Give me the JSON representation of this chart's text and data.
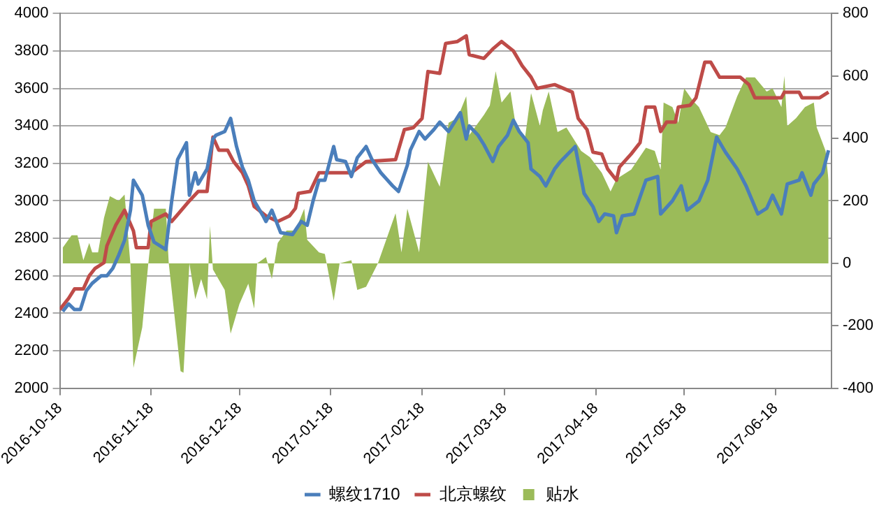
{
  "chart_data": {
    "type": "line",
    "xlim": [
      "2016-10-18",
      "2017-07-07"
    ],
    "xticks": [
      "2016-10-18",
      "2016-11-18",
      "2016-12-18",
      "2017-01-18",
      "2017-02-18",
      "2017-03-18",
      "2017-04-18",
      "2017-05-18",
      "2017-06-18"
    ],
    "ylim": [
      2000,
      4000
    ],
    "yticks": [
      2000,
      2200,
      2400,
      2600,
      2800,
      3000,
      3200,
      3400,
      3600,
      3800,
      4000
    ],
    "y2lim": [
      -400,
      800
    ],
    "y2ticks": [
      -400,
      -200,
      0,
      200,
      400,
      600,
      800
    ],
    "grid": "y",
    "legend": "bottom",
    "series": [
      {
        "name": "贴水",
        "type": "area",
        "axis": "y2",
        "color": "#9bbb59",
        "x": [
          "2016-10-19",
          "2016-10-22",
          "2016-10-24",
          "2016-10-26",
          "2016-10-28",
          "2016-10-29",
          "2016-10-31",
          "2016-11-02",
          "2016-11-04",
          "2016-11-07",
          "2016-11-09",
          "2016-11-11",
          "2016-11-12",
          "2016-11-15",
          "2016-11-17",
          "2016-11-19",
          "2016-11-23",
          "2016-11-24",
          "2016-11-28",
          "2016-11-29",
          "2016-12-01",
          "2016-12-03",
          "2016-12-05",
          "2016-12-07",
          "2016-12-08",
          "2016-12-09",
          "2016-12-13",
          "2016-12-15",
          "2016-12-18",
          "2016-12-21",
          "2016-12-23",
          "2016-12-24",
          "2016-12-27",
          "2016-12-29",
          "2016-12-31",
          "2017-01-03",
          "2017-01-06",
          "2017-01-09",
          "2017-01-10",
          "2017-01-14",
          "2017-01-16",
          "2017-01-19",
          "2017-01-21",
          "2017-01-25",
          "2017-01-27",
          "2017-01-30",
          "2017-02-03",
          "2017-02-09",
          "2017-02-11",
          "2017-02-13",
          "2017-02-17",
          "2017-02-19",
          "2017-02-20",
          "2017-02-24",
          "2017-02-27",
          "2017-03-02",
          "2017-03-05",
          "2017-03-06",
          "2017-03-11",
          "2017-03-13",
          "2017-03-15",
          "2017-03-17",
          "2017-03-20",
          "2017-03-22",
          "2017-03-25",
          "2017-03-27",
          "2017-03-30",
          "2017-03-31",
          "2017-04-02",
          "2017-04-05",
          "2017-04-08",
          "2017-04-13",
          "2017-04-16",
          "2017-04-20",
          "2017-04-23",
          "2017-04-25",
          "2017-04-30",
          "2017-05-05",
          "2017-05-08",
          "2017-05-10",
          "2017-05-11",
          "2017-05-14",
          "2017-05-16",
          "2017-05-18",
          "2017-05-21",
          "2017-05-23",
          "2017-05-27",
          "2017-05-30",
          "2017-06-01",
          "2017-06-05",
          "2017-06-08",
          "2017-06-11",
          "2017-06-15",
          "2017-06-17",
          "2017-06-20",
          "2017-06-21",
          "2017-06-22",
          "2017-06-25",
          "2017-06-28",
          "2017-07-01",
          "2017-07-02",
          "2017-07-05",
          "2017-07-06"
        ],
        "values": [
          50,
          90,
          90,
          10,
          65,
          35,
          35,
          145,
          215,
          200,
          220,
          -5,
          -335,
          -205,
          -5,
          175,
          175,
          0,
          -345,
          -350,
          0,
          -115,
          -50,
          -115,
          120,
          -20,
          -85,
          -225,
          -130,
          -65,
          -145,
          0,
          20,
          -50,
          65,
          105,
          105,
          175,
          75,
          35,
          30,
          -120,
          0,
          10,
          -85,
          -75,
          0,
          160,
          35,
          175,
          35,
          230,
          325,
          245,
          450,
          465,
          535,
          410,
          475,
          505,
          615,
          515,
          550,
          430,
          405,
          545,
          440,
          490,
          550,
          420,
          435,
          360,
          340,
          290,
          230,
          270,
          300,
          370,
          360,
          300,
          515,
          500,
          450,
          560,
          520,
          500,
          420,
          410,
          435,
          535,
          595,
          595,
          550,
          560,
          500,
          600,
          440,
          465,
          500,
          515,
          435,
          360,
          265
        ]
      },
      {
        "name": "螺纹1710",
        "type": "line",
        "axis": "y",
        "color": "#4a7ebb",
        "x": [
          "2016-10-19",
          "2016-10-21",
          "2016-10-23",
          "2016-10-25",
          "2016-10-27",
          "2016-10-29",
          "2016-11-01",
          "2016-11-03",
          "2016-11-05",
          "2016-11-07",
          "2016-11-09",
          "2016-11-11",
          "2016-11-12",
          "2016-11-15",
          "2016-11-17",
          "2016-11-19",
          "2016-11-23",
          "2016-11-25",
          "2016-11-27",
          "2016-11-30",
          "2016-12-01",
          "2016-12-03",
          "2016-12-04",
          "2016-12-07",
          "2016-12-09",
          "2016-12-10",
          "2016-12-13",
          "2016-12-15",
          "2016-12-17",
          "2016-12-19",
          "2016-12-21",
          "2016-12-23",
          "2016-12-26",
          "2016-12-27",
          "2016-12-29",
          "2017-01-01",
          "2017-01-05",
          "2017-01-08",
          "2017-01-10",
          "2017-01-12",
          "2017-01-14",
          "2017-01-16",
          "2017-01-19",
          "2017-01-20",
          "2017-01-23",
          "2017-01-25",
          "2017-01-27",
          "2017-01-30",
          "2017-02-01",
          "2017-02-04",
          "2017-02-08",
          "2017-02-10",
          "2017-02-13",
          "2017-02-14",
          "2017-02-17",
          "2017-02-19",
          "2017-02-22",
          "2017-02-24",
          "2017-02-27",
          "2017-03-01",
          "2017-03-03",
          "2017-03-05",
          "2017-03-06",
          "2017-03-09",
          "2017-03-11",
          "2017-03-14",
          "2017-03-16",
          "2017-03-19",
          "2017-03-21",
          "2017-03-23",
          "2017-03-26",
          "2017-03-27",
          "2017-03-30",
          "2017-04-01",
          "2017-04-04",
          "2017-04-06",
          "2017-04-11",
          "2017-04-14",
          "2017-04-17",
          "2017-04-19",
          "2017-04-21",
          "2017-04-24",
          "2017-04-25",
          "2017-04-27",
          "2017-05-01",
          "2017-05-05",
          "2017-05-09",
          "2017-05-10",
          "2017-05-14",
          "2017-05-17",
          "2017-05-19",
          "2017-05-23",
          "2017-05-26",
          "2017-05-29",
          "2017-06-01",
          "2017-06-05",
          "2017-06-08",
          "2017-06-12",
          "2017-06-15",
          "2017-06-17",
          "2017-06-20",
          "2017-06-22",
          "2017-06-26",
          "2017-06-27",
          "2017-06-30",
          "2017-07-01",
          "2017-07-04",
          "2017-07-06"
        ],
        "values": [
          2410,
          2450,
          2420,
          2420,
          2520,
          2560,
          2600,
          2600,
          2640,
          2710,
          2790,
          2950,
          3110,
          3030,
          2870,
          2780,
          2740,
          3000,
          3220,
          3310,
          3030,
          3150,
          3090,
          3170,
          3330,
          3350,
          3370,
          3440,
          3290,
          3180,
          3110,
          3000,
          2920,
          2890,
          2950,
          2830,
          2820,
          2890,
          2870,
          3000,
          3110,
          3110,
          3290,
          3220,
          3210,
          3130,
          3230,
          3290,
          3220,
          3150,
          3080,
          3050,
          3190,
          3270,
          3370,
          3330,
          3380,
          3420,
          3370,
          3420,
          3470,
          3330,
          3400,
          3350,
          3300,
          3210,
          3290,
          3350,
          3430,
          3370,
          3310,
          3170,
          3130,
          3080,
          3170,
          3210,
          3290,
          3040,
          2970,
          2890,
          2930,
          2920,
          2830,
          2920,
          2930,
          3110,
          3130,
          2930,
          3000,
          3080,
          2950,
          3000,
          3110,
          3340,
          3260,
          3170,
          3080,
          2930,
          2960,
          3030,
          2930,
          3090,
          3110,
          3150,
          3030,
          3090,
          3150,
          3270
        ]
      },
      {
        "name": "北京螺纹",
        "type": "line",
        "axis": "y",
        "color": "#be4b48",
        "x": [
          "2016-10-18",
          "2016-10-21",
          "2016-10-23",
          "2016-10-26",
          "2016-10-28",
          "2016-10-30",
          "2016-11-02",
          "2016-11-03",
          "2016-11-06",
          "2016-11-09",
          "2016-11-12",
          "2016-11-13",
          "2016-11-17",
          "2016-11-18",
          "2016-11-23",
          "2016-11-25",
          "2016-12-01",
          "2016-12-04",
          "2016-12-07",
          "2016-12-09",
          "2016-12-11",
          "2016-12-14",
          "2016-12-16",
          "2016-12-19",
          "2016-12-21",
          "2016-12-23",
          "2016-12-27",
          "2016-12-31",
          "2017-01-04",
          "2017-01-06",
          "2017-01-07",
          "2017-01-11",
          "2017-01-14",
          "2017-01-25",
          "2017-01-30",
          "2017-02-09",
          "2017-02-12",
          "2017-02-15",
          "2017-02-18",
          "2017-02-20",
          "2017-02-24",
          "2017-02-26",
          "2017-03-02",
          "2017-03-05",
          "2017-03-06",
          "2017-03-11",
          "2017-03-14",
          "2017-03-17",
          "2017-03-21",
          "2017-03-24",
          "2017-03-27",
          "2017-03-29",
          "2017-04-04",
          "2017-04-10",
          "2017-04-12",
          "2017-04-15",
          "2017-04-17",
          "2017-04-20",
          "2017-04-22",
          "2017-04-25",
          "2017-04-26",
          "2017-04-30",
          "2017-05-03",
          "2017-05-05",
          "2017-05-08",
          "2017-05-10",
          "2017-05-12",
          "2017-05-15",
          "2017-05-16",
          "2017-05-20",
          "2017-05-22",
          "2017-05-25",
          "2017-05-27",
          "2017-05-30",
          "2017-06-01",
          "2017-06-06",
          "2017-06-09",
          "2017-06-11",
          "2017-06-15",
          "2017-06-20",
          "2017-06-21",
          "2017-06-26",
          "2017-06-27",
          "2017-07-03",
          "2017-07-06"
        ],
        "values": [
          2420,
          2480,
          2530,
          2530,
          2600,
          2640,
          2670,
          2760,
          2870,
          2950,
          2840,
          2750,
          2750,
          2890,
          2930,
          2890,
          3000,
          3050,
          3050,
          3340,
          3270,
          3270,
          3210,
          3150,
          3080,
          2970,
          2920,
          2890,
          2920,
          2960,
          3040,
          3050,
          3150,
          3150,
          3210,
          3220,
          3380,
          3390,
          3440,
          3690,
          3680,
          3840,
          3850,
          3880,
          3780,
          3760,
          3810,
          3850,
          3800,
          3720,
          3660,
          3600,
          3620,
          3580,
          3440,
          3380,
          3260,
          3250,
          3170,
          3110,
          3180,
          3250,
          3310,
          3500,
          3500,
          3370,
          3420,
          3420,
          3500,
          3510,
          3550,
          3740,
          3740,
          3660,
          3660,
          3660,
          3620,
          3550,
          3550,
          3550,
          3580,
          3580,
          3550,
          3550,
          3580
        ]
      }
    ]
  }
}
